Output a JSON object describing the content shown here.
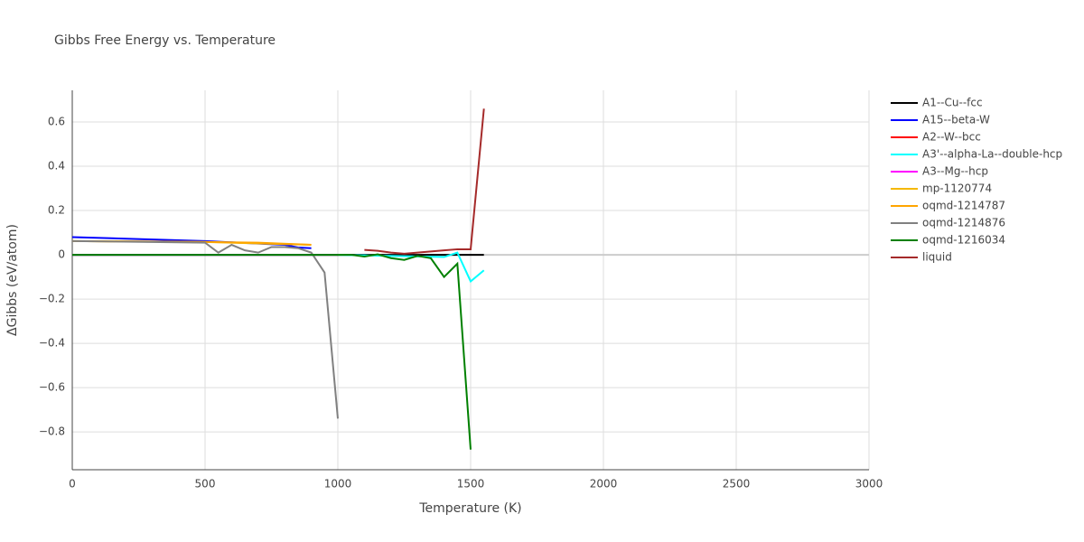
{
  "chart_data": {
    "type": "line",
    "title": "Gibbs Free Energy vs. Temperature",
    "xlabel": "Temperature (K)",
    "ylabel": "ΔGibbs (eV/atom)",
    "xlim": [
      0,
      3000
    ],
    "xticks": [
      0,
      500,
      1000,
      1500,
      2000,
      2500,
      3000
    ],
    "ylim": [
      -0.971,
      0.743
    ],
    "yticks": [
      {
        "value": -0.8,
        "label": "−0.8"
      },
      {
        "value": -0.6,
        "label": "−0.6"
      },
      {
        "value": -0.4,
        "label": "−0.4"
      },
      {
        "value": -0.2,
        "label": "−0.2"
      },
      0,
      0.2,
      0.4,
      0.6
    ],
    "grid": true,
    "series": [
      {
        "name": "A1--Cu--fcc",
        "color": "#000000",
        "x": [
          0,
          500,
          1000,
          1550
        ],
        "values": [
          0,
          0,
          0,
          0
        ]
      },
      {
        "name": "A15--beta-W",
        "color": "#0000ff",
        "x": [
          0,
          500,
          800,
          850,
          900
        ],
        "values": [
          0.08,
          0.062,
          0.045,
          0.033,
          0.03
        ]
      },
      {
        "name": "A2--W--bcc",
        "color": "#ff0000",
        "x": [
          0,
          1000
        ],
        "values": [
          0,
          0
        ]
      },
      {
        "name": "A3'--alpha-La--double-hcp",
        "color": "#00ffff",
        "x": [
          0,
          500,
          1000,
          1400,
          1450,
          1500,
          1550
        ],
        "values": [
          0,
          0,
          0,
          -0.01,
          0.01,
          -0.12,
          -0.07
        ]
      },
      {
        "name": "A3--Mg--hcp",
        "color": "#ff00ff",
        "x": [
          0,
          1000
        ],
        "values": [
          0,
          0
        ]
      },
      {
        "name": "mp-1120774",
        "color": "#f5b800",
        "x": [
          0,
          500,
          900
        ],
        "values": [
          0.062,
          0.058,
          0.045
        ]
      },
      {
        "name": "oqmd-1214787",
        "color": "#ffa500",
        "x": [
          0,
          500,
          700,
          900
        ],
        "values": [
          0.062,
          0.058,
          0.055,
          0.045
        ]
      },
      {
        "name": "oqmd-1214876",
        "color": "#808080",
        "x": [
          0,
          500,
          550,
          600,
          650,
          700,
          750,
          800,
          850,
          900,
          950,
          1000
        ],
        "values": [
          0.062,
          0.055,
          0.01,
          0.045,
          0.02,
          0.01,
          0.035,
          0.035,
          0.03,
          0.01,
          -0.08,
          -0.74
        ]
      },
      {
        "name": "oqmd-1216034",
        "color": "#008000",
        "x": [
          0,
          500,
          900,
          1000,
          1050,
          1100,
          1150,
          1200,
          1250,
          1300,
          1350,
          1400,
          1450,
          1500
        ],
        "values": [
          0,
          0,
          0,
          0,
          0,
          -0.008,
          0.002,
          -0.015,
          -0.023,
          -0.005,
          -0.015,
          -0.1,
          -0.04,
          -0.88
        ]
      },
      {
        "name": "liquid",
        "color": "#a52a2a",
        "x": [
          1100,
          1150,
          1200,
          1250,
          1300,
          1350,
          1400,
          1450,
          1500,
          1550
        ],
        "values": [
          0.022,
          0.018,
          0.01,
          0.005,
          0.01,
          0.015,
          0.02,
          0.025,
          0.025,
          0.66
        ]
      }
    ]
  }
}
